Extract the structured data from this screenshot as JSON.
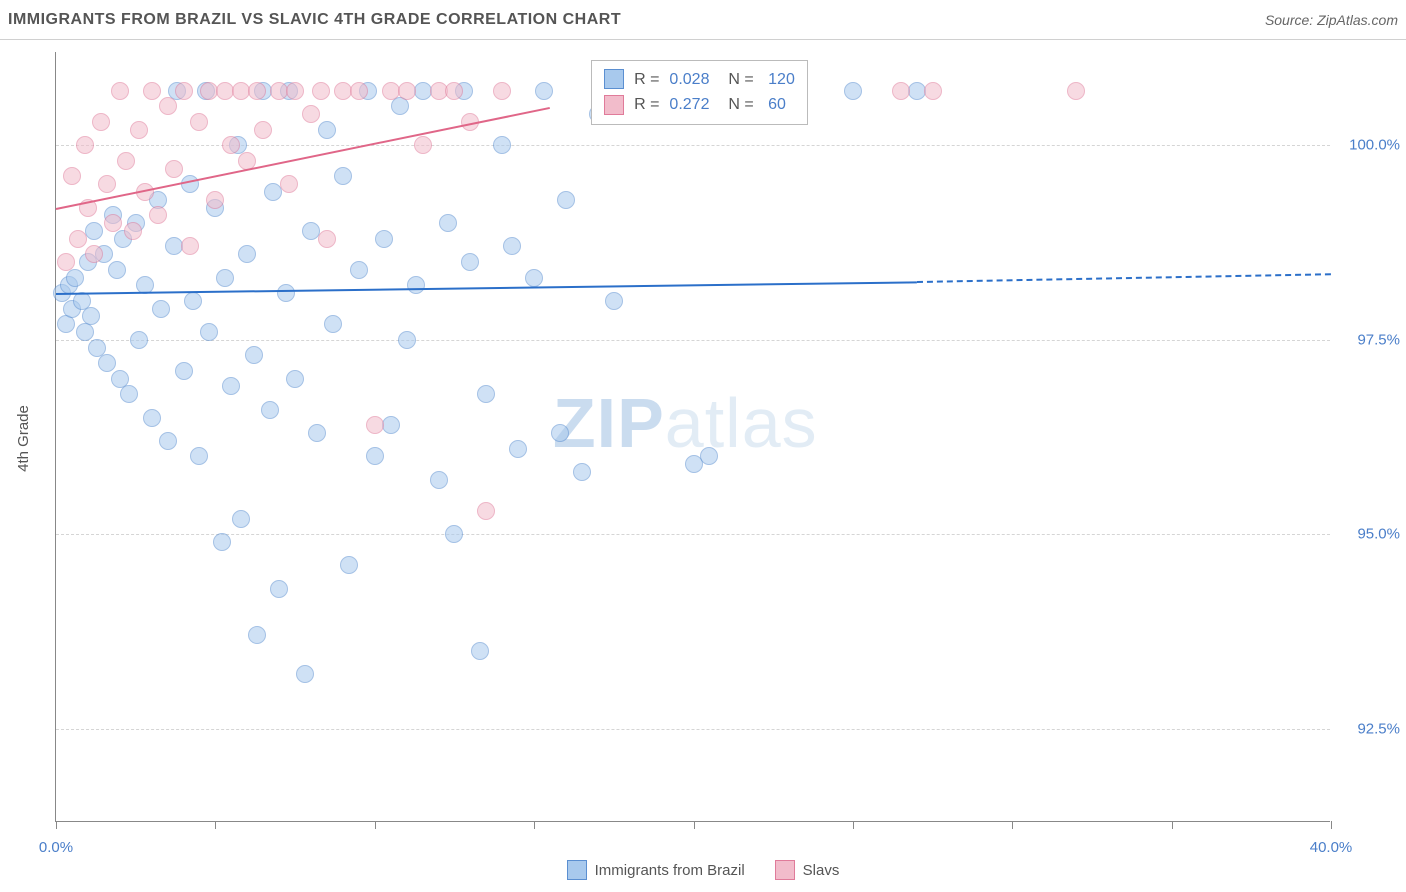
{
  "chart": {
    "title": "IMMIGRANTS FROM BRAZIL VS SLAVIC 4TH GRADE CORRELATION CHART",
    "source": "Source: ZipAtlas.com",
    "y_axis_label": "4th Grade",
    "type": "scatter",
    "background_color": "#ffffff",
    "grid_color": "#d5d5d5",
    "axis_color": "#888888",
    "tick_label_color": "#4a7ec9",
    "xlim": [
      0,
      40
    ],
    "ylim": [
      91.3,
      101.2
    ],
    "x_ticks": [
      0,
      5,
      10,
      15,
      20,
      25,
      30,
      35,
      40
    ],
    "x_tick_labels": {
      "0": "0.0%",
      "40": "40.0%"
    },
    "y_ticks": [
      92.5,
      95.0,
      97.5,
      100.0
    ],
    "y_tick_labels": [
      "92.5%",
      "95.0%",
      "97.5%",
      "100.0%"
    ],
    "watermark": {
      "bold": "ZIP",
      "rest": "atlas"
    },
    "series": [
      {
        "name": "Immigrants from Brazil",
        "fill_color": "#a8c9ed",
        "stroke_color": "#5b8fd1",
        "trend_color": "#2b6fc9",
        "R": "0.028",
        "N": "120",
        "trend": {
          "x1": 0,
          "y1": 98.1,
          "x2_solid": 27,
          "y2_solid": 98.25,
          "x2_dash": 40,
          "y2_dash": 98.35
        },
        "points": [
          [
            0.2,
            98.1
          ],
          [
            0.3,
            97.7
          ],
          [
            0.4,
            98.2
          ],
          [
            0.5,
            97.9
          ],
          [
            0.6,
            98.3
          ],
          [
            0.8,
            98.0
          ],
          [
            0.9,
            97.6
          ],
          [
            1.0,
            98.5
          ],
          [
            1.1,
            97.8
          ],
          [
            1.2,
            98.9
          ],
          [
            1.3,
            97.4
          ],
          [
            1.5,
            98.6
          ],
          [
            1.6,
            97.2
          ],
          [
            1.8,
            99.1
          ],
          [
            1.9,
            98.4
          ],
          [
            2.0,
            97.0
          ],
          [
            2.1,
            98.8
          ],
          [
            2.3,
            96.8
          ],
          [
            2.5,
            99.0
          ],
          [
            2.6,
            97.5
          ],
          [
            2.8,
            98.2
          ],
          [
            3.0,
            96.5
          ],
          [
            3.2,
            99.3
          ],
          [
            3.3,
            97.9
          ],
          [
            3.5,
            96.2
          ],
          [
            3.7,
            98.7
          ],
          [
            3.8,
            100.7
          ],
          [
            4.0,
            97.1
          ],
          [
            4.2,
            99.5
          ],
          [
            4.3,
            98.0
          ],
          [
            4.5,
            96.0
          ],
          [
            4.7,
            100.7
          ],
          [
            4.8,
            97.6
          ],
          [
            5.0,
            99.2
          ],
          [
            5.2,
            94.9
          ],
          [
            5.3,
            98.3
          ],
          [
            5.5,
            96.9
          ],
          [
            5.7,
            100.0
          ],
          [
            5.8,
            95.2
          ],
          [
            6.0,
            98.6
          ],
          [
            6.2,
            97.3
          ],
          [
            6.3,
            93.7
          ],
          [
            6.5,
            100.7
          ],
          [
            6.7,
            96.6
          ],
          [
            6.8,
            99.4
          ],
          [
            7.0,
            94.3
          ],
          [
            7.2,
            98.1
          ],
          [
            7.3,
            100.7
          ],
          [
            7.5,
            97.0
          ],
          [
            7.8,
            93.2
          ],
          [
            8.0,
            98.9
          ],
          [
            8.2,
            96.3
          ],
          [
            8.5,
            100.2
          ],
          [
            8.7,
            97.7
          ],
          [
            9.0,
            99.6
          ],
          [
            9.2,
            94.6
          ],
          [
            9.5,
            98.4
          ],
          [
            9.8,
            100.7
          ],
          [
            10.0,
            96.0
          ],
          [
            10.3,
            98.8
          ],
          [
            10.5,
            96.4
          ],
          [
            10.8,
            100.5
          ],
          [
            11.0,
            97.5
          ],
          [
            11.3,
            98.2
          ],
          [
            11.5,
            100.7
          ],
          [
            12.0,
            95.7
          ],
          [
            12.3,
            99.0
          ],
          [
            12.5,
            95.0
          ],
          [
            12.8,
            100.7
          ],
          [
            13.0,
            98.5
          ],
          [
            13.3,
            93.5
          ],
          [
            13.5,
            96.8
          ],
          [
            14.0,
            100.0
          ],
          [
            14.3,
            98.7
          ],
          [
            14.5,
            96.1
          ],
          [
            15.0,
            98.3
          ],
          [
            15.3,
            100.7
          ],
          [
            15.8,
            96.3
          ],
          [
            16.0,
            99.3
          ],
          [
            16.5,
            95.8
          ],
          [
            17.0,
            100.4
          ],
          [
            17.5,
            98.0
          ],
          [
            18.0,
            100.7
          ],
          [
            20.0,
            95.9
          ],
          [
            20.5,
            96.0
          ],
          [
            21.0,
            100.7
          ],
          [
            25.0,
            100.7
          ],
          [
            27.0,
            100.7
          ]
        ]
      },
      {
        "name": "Slavs",
        "fill_color": "#f2bccb",
        "stroke_color": "#e07b9a",
        "trend_color": "#e06688",
        "R": "0.272",
        "N": "60",
        "trend": {
          "x1": 0,
          "y1": 99.2,
          "x2_solid": 15.5,
          "y2_solid": 100.5,
          "x2_dash": null,
          "y2_dash": null
        },
        "points": [
          [
            0.3,
            98.5
          ],
          [
            0.5,
            99.6
          ],
          [
            0.7,
            98.8
          ],
          [
            0.9,
            100.0
          ],
          [
            1.0,
            99.2
          ],
          [
            1.2,
            98.6
          ],
          [
            1.4,
            100.3
          ],
          [
            1.6,
            99.5
          ],
          [
            1.8,
            99.0
          ],
          [
            2.0,
            100.7
          ],
          [
            2.2,
            99.8
          ],
          [
            2.4,
            98.9
          ],
          [
            2.6,
            100.2
          ],
          [
            2.8,
            99.4
          ],
          [
            3.0,
            100.7
          ],
          [
            3.2,
            99.1
          ],
          [
            3.5,
            100.5
          ],
          [
            3.7,
            99.7
          ],
          [
            4.0,
            100.7
          ],
          [
            4.2,
            98.7
          ],
          [
            4.5,
            100.3
          ],
          [
            4.8,
            100.7
          ],
          [
            5.0,
            99.3
          ],
          [
            5.3,
            100.7
          ],
          [
            5.5,
            100.0
          ],
          [
            5.8,
            100.7
          ],
          [
            6.0,
            99.8
          ],
          [
            6.3,
            100.7
          ],
          [
            6.5,
            100.2
          ],
          [
            7.0,
            100.7
          ],
          [
            7.3,
            99.5
          ],
          [
            7.5,
            100.7
          ],
          [
            8.0,
            100.4
          ],
          [
            8.3,
            100.7
          ],
          [
            8.5,
            98.8
          ],
          [
            9.0,
            100.7
          ],
          [
            9.5,
            100.7
          ],
          [
            10.0,
            96.4
          ],
          [
            10.5,
            100.7
          ],
          [
            11.0,
            100.7
          ],
          [
            11.5,
            100.0
          ],
          [
            12.0,
            100.7
          ],
          [
            12.5,
            100.7
          ],
          [
            13.0,
            100.3
          ],
          [
            13.5,
            95.3
          ],
          [
            14.0,
            100.7
          ],
          [
            26.5,
            100.7
          ],
          [
            27.5,
            100.7
          ],
          [
            32.0,
            100.7
          ]
        ]
      }
    ],
    "bottom_legend": [
      {
        "label": "Immigrants from Brazil",
        "fill": "#a8c9ed",
        "stroke": "#5b8fd1"
      },
      {
        "label": "Slavs",
        "fill": "#f2bccb",
        "stroke": "#e07b9a"
      }
    ],
    "stats_box": {
      "left_pct": 42,
      "top_pct": 1
    }
  }
}
